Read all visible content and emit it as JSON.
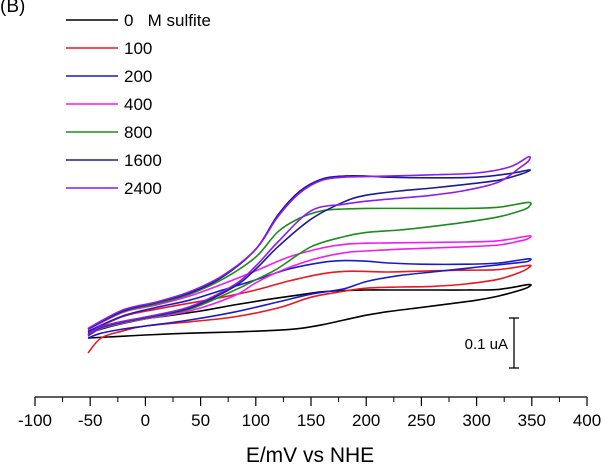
{
  "chart_data": {
    "type": "line",
    "panel_label": "(B)",
    "title": "",
    "xlabel": "E/mV vs NHE",
    "ylabel": "",
    "xlim": [
      -100,
      400
    ],
    "x_ticks": [
      -100,
      -50,
      0,
      50,
      100,
      150,
      200,
      250,
      300,
      350,
      400
    ],
    "scale_bar_label": "0.1 uA",
    "legend_placement": "top-left",
    "grid": false,
    "series": [
      {
        "name": "0   M sulfite",
        "color": "#000000",
        "x": [
          -52,
          -30,
          0,
          40,
          80,
          120,
          140,
          160,
          180,
          200,
          220,
          250,
          280,
          300,
          320,
          340,
          347,
          347,
          320,
          290,
          260,
          220,
          200,
          180,
          160,
          140,
          110,
          80,
          50,
          20,
          0,
          -30,
          -52
        ],
        "y": [
          0.02,
          0.022,
          0.025,
          0.028,
          0.03,
          0.033,
          0.036,
          0.042,
          0.05,
          0.058,
          0.064,
          0.071,
          0.078,
          0.083,
          0.09,
          0.1,
          0.105,
          0.109,
          0.101,
          0.1,
          0.1,
          0.1,
          0.1,
          0.099,
          0.097,
          0.092,
          0.084,
          0.075,
          0.065,
          0.057,
          0.052,
          0.04,
          0.028
        ]
      },
      {
        "name": "100",
        "color": "#e8191f",
        "x": [
          -52,
          -40,
          -20,
          0,
          40,
          80,
          120,
          150,
          180,
          200,
          230,
          260,
          290,
          320,
          340,
          347,
          347,
          320,
          290,
          260,
          220,
          200,
          180,
          160,
          130,
          100,
          70,
          40,
          10,
          -20,
          -52
        ],
        "y": [
          -0.005,
          0.02,
          0.032,
          0.04,
          0.047,
          0.055,
          0.07,
          0.088,
          0.098,
          0.103,
          0.105,
          0.106,
          0.11,
          0.118,
          0.13,
          0.137,
          0.141,
          0.134,
          0.133,
          0.132,
          0.13,
          0.131,
          0.131,
          0.127,
          0.115,
          0.1,
          0.088,
          0.078,
          0.068,
          0.056,
          0.03
        ]
      },
      {
        "name": "200",
        "color": "#1a1aca",
        "x": [
          -52,
          -40,
          -20,
          0,
          40,
          80,
          120,
          150,
          180,
          200,
          230,
          260,
          290,
          320,
          340,
          347,
          347,
          320,
          290,
          250,
          220,
          200,
          180,
          160,
          130,
          100,
          70,
          40,
          10,
          -20,
          -52
        ],
        "y": [
          0.02,
          0.028,
          0.035,
          0.04,
          0.05,
          0.063,
          0.08,
          0.093,
          0.102,
          0.114,
          0.124,
          0.13,
          0.136,
          0.142,
          0.146,
          0.148,
          0.152,
          0.145,
          0.143,
          0.143,
          0.145,
          0.148,
          0.149,
          0.146,
          0.135,
          0.117,
          0.1,
          0.083,
          0.071,
          0.057,
          0.031
        ]
      },
      {
        "name": "400",
        "color": "#f01cf0",
        "x": [
          -52,
          -40,
          -20,
          0,
          40,
          80,
          100,
          120,
          150,
          180,
          200,
          230,
          260,
          290,
          320,
          340,
          347,
          347,
          320,
          290,
          250,
          200,
          180,
          160,
          130,
          100,
          70,
          40,
          10,
          -20,
          -52
        ],
        "y": [
          0.023,
          0.036,
          0.045,
          0.052,
          0.065,
          0.09,
          0.112,
          0.13,
          0.15,
          0.162,
          0.165,
          0.168,
          0.17,
          0.172,
          0.175,
          0.182,
          0.186,
          0.19,
          0.182,
          0.18,
          0.179,
          0.178,
          0.176,
          0.17,
          0.155,
          0.132,
          0.11,
          0.09,
          0.075,
          0.063,
          0.034
        ]
      },
      {
        "name": "800",
        "color": "#1f8b1f",
        "x": [
          -52,
          -40,
          -20,
          0,
          40,
          80,
          100,
          120,
          150,
          180,
          200,
          230,
          260,
          290,
          320,
          340,
          347,
          347,
          320,
          290,
          250,
          200,
          180,
          160,
          140,
          120,
          100,
          70,
          40,
          10,
          -20,
          -52
        ],
        "y": [
          0.024,
          0.037,
          0.046,
          0.053,
          0.068,
          0.099,
          0.117,
          0.136,
          0.172,
          0.189,
          0.196,
          0.2,
          0.206,
          0.213,
          0.222,
          0.232,
          0.238,
          0.246,
          0.238,
          0.236,
          0.236,
          0.236,
          0.235,
          0.232,
          0.22,
          0.197,
          0.155,
          0.118,
          0.093,
          0.077,
          0.064,
          0.035
        ]
      },
      {
        "name": "1600",
        "color": "#1c1c8c",
        "x": [
          -52,
          -40,
          -20,
          0,
          40,
          80,
          100,
          120,
          150,
          180,
          200,
          230,
          260,
          290,
          320,
          340,
          347,
          347,
          330,
          300,
          260,
          220,
          200,
          180,
          160,
          140,
          120,
          100,
          70,
          40,
          10,
          -20,
          -52
        ],
        "y": [
          0.025,
          0.038,
          0.047,
          0.054,
          0.07,
          0.105,
          0.135,
          0.172,
          0.218,
          0.247,
          0.258,
          0.265,
          0.27,
          0.276,
          0.283,
          0.293,
          0.298,
          0.3,
          0.294,
          0.288,
          0.287,
          0.288,
          0.29,
          0.29,
          0.285,
          0.265,
          0.225,
          0.168,
          0.122,
          0.095,
          0.079,
          0.065,
          0.035
        ]
      },
      {
        "name": "2400",
        "color": "#8c1cf0",
        "x": [
          -52,
          -40,
          -20,
          0,
          40,
          80,
          100,
          120,
          150,
          180,
          200,
          230,
          260,
          290,
          320,
          340,
          347,
          347,
          330,
          300,
          260,
          220,
          200,
          180,
          160,
          140,
          120,
          100,
          70,
          40,
          10,
          -20,
          -52
        ],
        "y": [
          0.026,
          0.039,
          0.048,
          0.055,
          0.072,
          0.108,
          0.14,
          0.18,
          0.232,
          0.243,
          0.248,
          0.253,
          0.258,
          0.266,
          0.28,
          0.305,
          0.315,
          0.322,
          0.305,
          0.295,
          0.292,
          0.29,
          0.289,
          0.288,
          0.283,
          0.262,
          0.222,
          0.168,
          0.124,
          0.097,
          0.08,
          0.067,
          0.036
        ]
      }
    ]
  }
}
